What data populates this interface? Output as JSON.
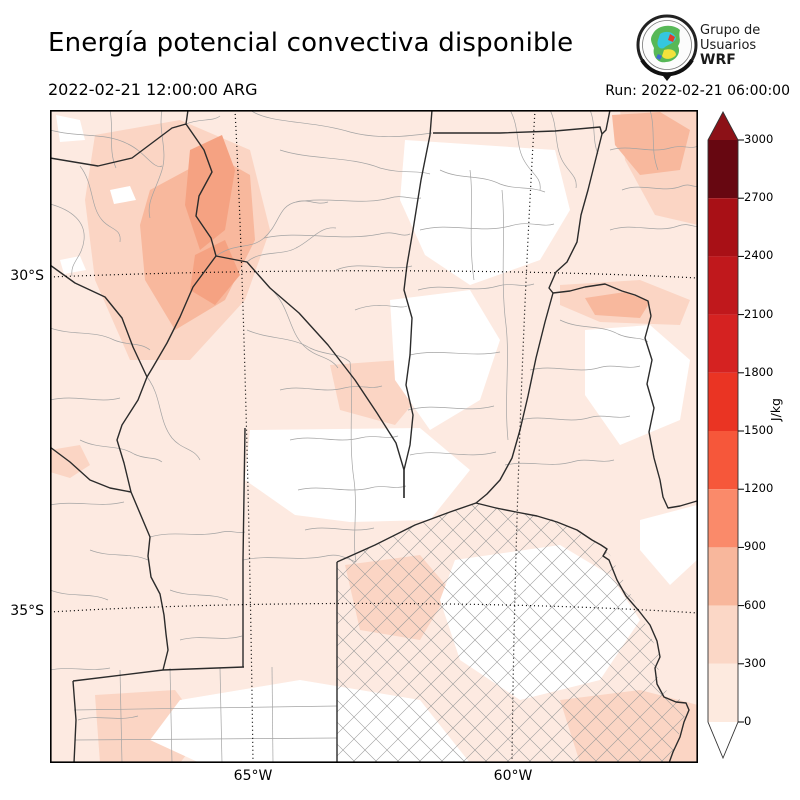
{
  "header": {
    "title": "Energía potencial convectiva disponible",
    "logo": {
      "line1": "Grupo de",
      "line2": "Usuarios",
      "line3": "WRF"
    }
  },
  "times": {
    "valid_time": "2022-02-21 12:00:00 ARG",
    "run_label": "Run: 2022-02-21 06:00:00"
  },
  "map": {
    "lat_labels": [
      "30°S",
      "35°S"
    ],
    "lon_labels": [
      "65°W",
      "60°W"
    ],
    "gridline_style": "dotted"
  },
  "colorbar": {
    "unit": "J/kg",
    "ticks": [
      "3000",
      "2700",
      "2400",
      "2100",
      "1800",
      "1500",
      "1200",
      "900",
      "600",
      "300",
      "0"
    ],
    "colors_top_to_bottom": [
      "#670711",
      "#a81016",
      "#c0181c",
      "#d52221",
      "#ea3423",
      "#f6573a",
      "#fa8a6a",
      "#f8b79c",
      "#fbd7c6",
      "#fdeadf"
    ],
    "over_color": "#8c1117",
    "under_color": "#ffffff",
    "range": [
      0,
      3000
    ],
    "interval": 300
  },
  "field": {
    "name": "CAPE",
    "shade_levels": [
      "0",
      "0-300",
      "300-600",
      "600-900",
      "900-1200"
    ],
    "shade_colors": [
      "#ffffff",
      "#fdeae1",
      "#fbd5c4",
      "#f8b89d",
      "#f5a282"
    ]
  }
}
